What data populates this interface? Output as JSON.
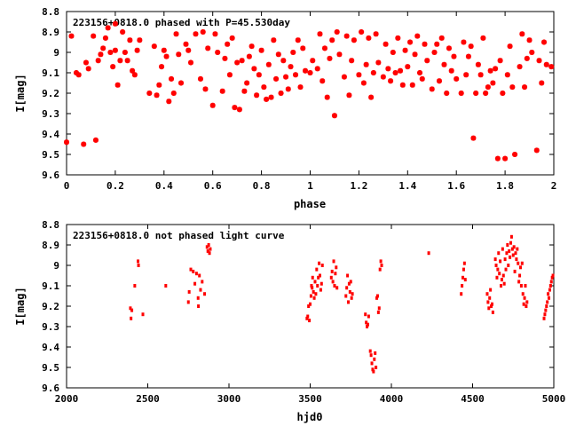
{
  "chart_data": [
    {
      "type": "scatter",
      "title": "223156+0818.0 phased with P=45.530day",
      "xlabel": "phase",
      "ylabel": "I[mag]",
      "xlim": [
        0,
        2
      ],
      "ylim": [
        9.6,
        8.8
      ],
      "y_inverted": true,
      "x_ticks": [
        "0",
        "0.2",
        "0.4",
        "0.6",
        "0.8",
        "1",
        "1.2",
        "1.4",
        "1.6",
        "1.8",
        "2"
      ],
      "y_ticks": [
        "8.8",
        "8.9",
        "9",
        "9.1",
        "9.2",
        "9.3",
        "9.4",
        "9.5",
        "9.6"
      ],
      "grid": false,
      "legend": "none",
      "marker_color": "#ff0000",
      "points": [
        [
          0.0,
          9.44
        ],
        [
          0.02,
          8.92
        ],
        [
          0.04,
          9.1
        ],
        [
          0.05,
          9.11
        ],
        [
          0.07,
          9.45
        ],
        [
          0.08,
          9.05
        ],
        [
          0.09,
          9.08
        ],
        [
          0.11,
          8.92
        ],
        [
          0.12,
          9.43
        ],
        [
          0.13,
          9.04
        ],
        [
          0.14,
          9.01
        ],
        [
          0.15,
          8.98
        ],
        [
          0.16,
          8.93
        ],
        [
          0.17,
          8.88
        ],
        [
          0.18,
          9.0
        ],
        [
          0.19,
          9.07
        ],
        [
          0.2,
          8.86
        ],
        [
          0.2,
          8.99
        ],
        [
          0.21,
          9.16
        ],
        [
          0.22,
          9.04
        ],
        [
          0.23,
          8.9
        ],
        [
          0.24,
          9.0
        ],
        [
          0.25,
          9.04
        ],
        [
          0.26,
          8.94
        ],
        [
          0.27,
          9.09
        ],
        [
          0.28,
          9.11
        ],
        [
          0.29,
          8.99
        ],
        [
          0.3,
          8.94
        ],
        [
          0.34,
          9.2
        ],
        [
          0.36,
          8.97
        ],
        [
          0.37,
          9.21
        ],
        [
          0.38,
          9.16
        ],
        [
          0.39,
          9.07
        ],
        [
          0.4,
          8.99
        ],
        [
          0.41,
          9.02
        ],
        [
          0.42,
          9.24
        ],
        [
          0.43,
          9.13
        ],
        [
          0.44,
          9.2
        ],
        [
          0.45,
          8.91
        ],
        [
          0.46,
          9.01
        ],
        [
          0.47,
          9.15
        ],
        [
          0.49,
          8.96
        ],
        [
          0.5,
          8.99
        ],
        [
          0.51,
          9.05
        ],
        [
          0.53,
          8.91
        ],
        [
          0.55,
          9.13
        ],
        [
          0.56,
          8.9
        ],
        [
          0.57,
          9.18
        ],
        [
          0.58,
          8.98
        ],
        [
          0.6,
          9.26
        ],
        [
          0.61,
          8.91
        ],
        [
          0.62,
          9.0
        ],
        [
          0.64,
          9.19
        ],
        [
          0.65,
          9.03
        ],
        [
          0.66,
          8.96
        ],
        [
          0.67,
          9.11
        ],
        [
          0.68,
          8.93
        ],
        [
          0.69,
          9.27
        ],
        [
          0.7,
          9.05
        ],
        [
          0.71,
          9.28
        ],
        [
          0.72,
          9.04
        ],
        [
          0.73,
          9.19
        ],
        [
          0.74,
          9.15
        ],
        [
          0.75,
          9.02
        ],
        [
          0.76,
          8.97
        ],
        [
          0.77,
          9.08
        ],
        [
          0.78,
          9.21
        ],
        [
          0.79,
          9.11
        ],
        [
          0.8,
          8.99
        ],
        [
          0.81,
          9.17
        ],
        [
          0.82,
          9.23
        ],
        [
          0.83,
          9.06
        ],
        [
          0.84,
          9.22
        ],
        [
          0.85,
          8.94
        ],
        [
          0.86,
          9.13
        ],
        [
          0.87,
          9.01
        ],
        [
          0.88,
          9.2
        ],
        [
          0.89,
          9.04
        ],
        [
          0.9,
          9.12
        ],
        [
          0.91,
          9.18
        ],
        [
          0.92,
          9.07
        ],
        [
          0.93,
          9.0
        ],
        [
          0.94,
          9.11
        ],
        [
          0.95,
          8.94
        ],
        [
          0.96,
          9.17
        ],
        [
          0.97,
          8.98
        ],
        [
          0.98,
          9.09
        ],
        [
          1.0,
          9.1
        ],
        [
          1.01,
          9.04
        ],
        [
          1.03,
          9.08
        ],
        [
          1.04,
          8.91
        ],
        [
          1.05,
          9.14
        ],
        [
          1.06,
          8.98
        ],
        [
          1.07,
          9.22
        ],
        [
          1.08,
          9.03
        ],
        [
          1.09,
          8.94
        ],
        [
          1.1,
          9.31
        ],
        [
          1.11,
          8.9
        ],
        [
          1.12,
          9.01
        ],
        [
          1.14,
          9.12
        ],
        [
          1.15,
          8.92
        ],
        [
          1.16,
          9.21
        ],
        [
          1.17,
          9.04
        ],
        [
          1.18,
          8.94
        ],
        [
          1.2,
          9.11
        ],
        [
          1.21,
          8.9
        ],
        [
          1.22,
          9.15
        ],
        [
          1.23,
          9.06
        ],
        [
          1.24,
          8.93
        ],
        [
          1.25,
          9.22
        ],
        [
          1.26,
          9.1
        ],
        [
          1.27,
          8.91
        ],
        [
          1.28,
          9.05
        ],
        [
          1.3,
          9.12
        ],
        [
          1.31,
          8.96
        ],
        [
          1.32,
          9.08
        ],
        [
          1.33,
          9.14
        ],
        [
          1.34,
          9.0
        ],
        [
          1.35,
          9.1
        ],
        [
          1.36,
          8.93
        ],
        [
          1.37,
          9.09
        ],
        [
          1.38,
          9.16
        ],
        [
          1.39,
          8.99
        ],
        [
          1.4,
          9.07
        ],
        [
          1.41,
          8.95
        ],
        [
          1.42,
          9.16
        ],
        [
          1.43,
          9.01
        ],
        [
          1.44,
          8.92
        ],
        [
          1.45,
          9.1
        ],
        [
          1.46,
          9.13
        ],
        [
          1.47,
          8.96
        ],
        [
          1.48,
          9.04
        ],
        [
          1.5,
          9.18
        ],
        [
          1.51,
          9.0
        ],
        [
          1.52,
          8.96
        ],
        [
          1.53,
          9.14
        ],
        [
          1.54,
          8.93
        ],
        [
          1.55,
          9.06
        ],
        [
          1.56,
          9.2
        ],
        [
          1.57,
          8.98
        ],
        [
          1.58,
          9.09
        ],
        [
          1.59,
          9.02
        ],
        [
          1.6,
          9.13
        ],
        [
          1.62,
          9.2
        ],
        [
          1.63,
          8.95
        ],
        [
          1.64,
          9.11
        ],
        [
          1.65,
          9.02
        ],
        [
          1.66,
          8.97
        ],
        [
          1.67,
          9.42
        ],
        [
          1.68,
          9.2
        ],
        [
          1.69,
          9.06
        ],
        [
          1.7,
          9.11
        ],
        [
          1.71,
          8.93
        ],
        [
          1.72,
          9.2
        ],
        [
          1.73,
          9.17
        ],
        [
          1.74,
          9.09
        ],
        [
          1.75,
          9.15
        ],
        [
          1.76,
          9.08
        ],
        [
          1.77,
          9.52
        ],
        [
          1.78,
          9.04
        ],
        [
          1.79,
          9.2
        ],
        [
          1.8,
          9.52
        ],
        [
          1.81,
          9.11
        ],
        [
          1.82,
          8.97
        ],
        [
          1.83,
          9.17
        ],
        [
          1.84,
          9.5
        ],
        [
          1.86,
          9.07
        ],
        [
          1.87,
          8.91
        ],
        [
          1.88,
          9.17
        ],
        [
          1.89,
          9.03
        ],
        [
          1.9,
          8.94
        ],
        [
          1.91,
          9.0
        ],
        [
          1.93,
          9.48
        ],
        [
          1.94,
          9.04
        ],
        [
          1.95,
          9.15
        ],
        [
          1.96,
          8.95
        ],
        [
          1.97,
          9.06
        ],
        [
          1.99,
          9.07
        ]
      ]
    },
    {
      "type": "scatter",
      "title": "223156+0818.0 not phased light curve",
      "xlabel": "hjd0",
      "ylabel": "I[mag]",
      "xlim": [
        2000,
        5000
      ],
      "ylim": [
        9.6,
        8.8
      ],
      "y_inverted": true,
      "x_ticks": [
        "2000",
        "2500",
        "3000",
        "3500",
        "4000",
        "4500",
        "5000"
      ],
      "y_ticks": [
        "8.8",
        "8.9",
        "9",
        "9.1",
        "9.2",
        "9.3",
        "9.4",
        "9.5",
        "9.6"
      ],
      "grid": false,
      "legend": "none",
      "marker_color": "#ff0000",
      "points": [
        [
          2393,
          9.21
        ],
        [
          2397,
          9.26
        ],
        [
          2402,
          9.22
        ],
        [
          2420,
          9.1
        ],
        [
          2440,
          8.98
        ],
        [
          2443,
          9.0
        ],
        [
          2470,
          9.24
        ],
        [
          2611,
          9.1
        ],
        [
          2750,
          9.18
        ],
        [
          2755,
          9.13
        ],
        [
          2765,
          9.02
        ],
        [
          2780,
          9.03
        ],
        [
          2790,
          9.09
        ],
        [
          2800,
          9.04
        ],
        [
          2810,
          9.16
        ],
        [
          2812,
          9.2
        ],
        [
          2818,
          9.05
        ],
        [
          2825,
          9.12
        ],
        [
          2835,
          9.08
        ],
        [
          2850,
          9.14
        ],
        [
          2865,
          8.91
        ],
        [
          2870,
          8.93
        ],
        [
          2875,
          8.9
        ],
        [
          2880,
          8.94
        ],
        [
          2885,
          8.92
        ],
        [
          3480,
          9.26
        ],
        [
          3485,
          9.25
        ],
        [
          3490,
          9.2
        ],
        [
          3495,
          9.27
        ],
        [
          3500,
          9.19
        ],
        [
          3505,
          9.15
        ],
        [
          3508,
          9.1
        ],
        [
          3512,
          9.11
        ],
        [
          3515,
          9.06
        ],
        [
          3520,
          9.13
        ],
        [
          3525,
          9.16
        ],
        [
          3530,
          9.08
        ],
        [
          3535,
          9.14
        ],
        [
          3540,
          9.02
        ],
        [
          3545,
          9.1
        ],
        [
          3550,
          9.06
        ],
        [
          3555,
          8.99
        ],
        [
          3560,
          9.05
        ],
        [
          3565,
          9.12
        ],
        [
          3570,
          9.09
        ],
        [
          3575,
          9.0
        ],
        [
          3630,
          9.06
        ],
        [
          3635,
          9.03
        ],
        [
          3640,
          9.08
        ],
        [
          3645,
          8.98
        ],
        [
          3650,
          9.1
        ],
        [
          3655,
          9.04
        ],
        [
          3660,
          9.01
        ],
        [
          3665,
          9.11
        ],
        [
          3720,
          9.15
        ],
        [
          3725,
          9.11
        ],
        [
          3730,
          9.05
        ],
        [
          3735,
          9.18
        ],
        [
          3740,
          9.09
        ],
        [
          3745,
          9.13
        ],
        [
          3750,
          9.08
        ],
        [
          3755,
          9.16
        ],
        [
          3760,
          9.14
        ],
        [
          3840,
          9.24
        ],
        [
          3845,
          9.28
        ],
        [
          3850,
          9.3
        ],
        [
          3855,
          9.29
        ],
        [
          3860,
          9.25
        ],
        [
          3870,
          9.42
        ],
        [
          3875,
          9.44
        ],
        [
          3880,
          9.48
        ],
        [
          3885,
          9.51
        ],
        [
          3890,
          9.52
        ],
        [
          3895,
          9.46
        ],
        [
          3900,
          9.43
        ],
        [
          3905,
          9.5
        ],
        [
          3910,
          9.16
        ],
        [
          3915,
          9.15
        ],
        [
          3920,
          9.23
        ],
        [
          3925,
          9.21
        ],
        [
          3930,
          9.02
        ],
        [
          3935,
          8.98
        ],
        [
          3940,
          9.0
        ],
        [
          4230,
          8.94
        ],
        [
          4430,
          9.14
        ],
        [
          4435,
          9.1
        ],
        [
          4440,
          9.06
        ],
        [
          4445,
          9.02
        ],
        [
          4450,
          8.99
        ],
        [
          4455,
          9.07
        ],
        [
          4590,
          9.14
        ],
        [
          4595,
          9.18
        ],
        [
          4600,
          9.21
        ],
        [
          4605,
          9.16
        ],
        [
          4610,
          9.12
        ],
        [
          4615,
          9.2
        ],
        [
          4620,
          9.19
        ],
        [
          4625,
          9.23
        ],
        [
          4640,
          8.97
        ],
        [
          4645,
          9.0
        ],
        [
          4650,
          9.06
        ],
        [
          4655,
          9.02
        ],
        [
          4660,
          8.94
        ],
        [
          4665,
          9.04
        ],
        [
          4670,
          8.98
        ],
        [
          4675,
          9.1
        ],
        [
          4680,
          9.07
        ],
        [
          4685,
          8.92
        ],
        [
          4690,
          9.05
        ],
        [
          4695,
          9.09
        ],
        [
          4700,
          8.97
        ],
        [
          4705,
          9.02
        ],
        [
          4710,
          8.94
        ],
        [
          4715,
          8.9
        ],
        [
          4720,
          9.0
        ],
        [
          4725,
          8.93
        ],
        [
          4730,
          8.96
        ],
        [
          4735,
          8.89
        ],
        [
          4740,
          8.86
        ],
        [
          4745,
          8.92
        ],
        [
          4750,
          8.95
        ],
        [
          4755,
          8.91
        ],
        [
          4760,
          9.03
        ],
        [
          4765,
          8.94
        ],
        [
          4770,
          8.97
        ],
        [
          4775,
          8.92
        ],
        [
          4780,
          8.99
        ],
        [
          4785,
          9.08
        ],
        [
          4790,
          9.05
        ],
        [
          4795,
          9.01
        ],
        [
          4800,
          9.1
        ],
        [
          4805,
          8.99
        ],
        [
          4810,
          9.14
        ],
        [
          4815,
          9.19
        ],
        [
          4820,
          9.16
        ],
        [
          4825,
          9.1
        ],
        [
          4830,
          9.2
        ],
        [
          4835,
          9.18
        ],
        [
          4940,
          9.26
        ],
        [
          4945,
          9.24
        ],
        [
          4950,
          9.22
        ],
        [
          4955,
          9.2
        ],
        [
          4960,
          9.18
        ],
        [
          4965,
          9.14
        ],
        [
          4970,
          9.16
        ],
        [
          4975,
          9.12
        ],
        [
          4980,
          9.1
        ],
        [
          4985,
          9.08
        ],
        [
          4990,
          9.06
        ],
        [
          4995,
          9.05
        ]
      ]
    }
  ]
}
